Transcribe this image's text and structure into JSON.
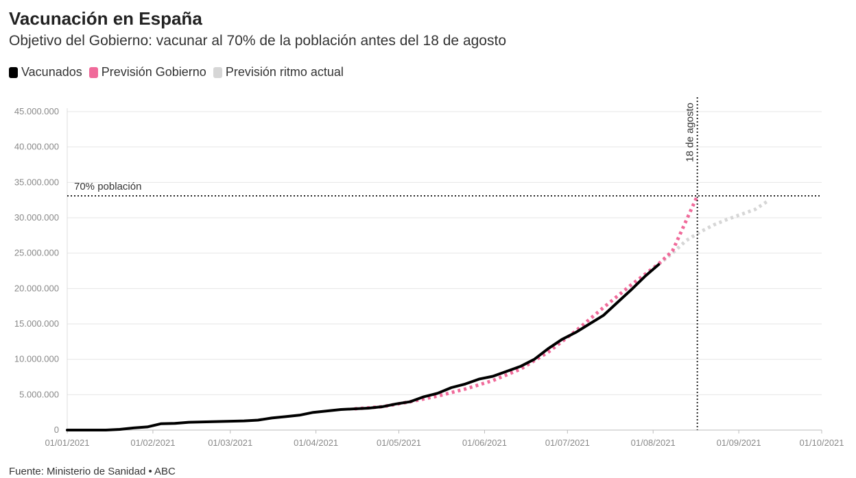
{
  "chart_data": {
    "type": "line",
    "title": "Vacunación en España",
    "subtitle": "Objetivo del Gobierno: vacunar al 70% de la población antes del 18 de agosto",
    "source": "Fuente: Ministerio de Sanidad • ABC",
    "xlabel": "",
    "ylabel": "",
    "x_range": [
      "01/01/2021",
      "01/10/2021"
    ],
    "ylim": [
      0,
      45000000
    ],
    "y_ticks": [
      0,
      5000000,
      10000000,
      15000000,
      20000000,
      25000000,
      30000000,
      35000000,
      40000000,
      45000000
    ],
    "y_tick_labels": [
      "0",
      "5.000.000",
      "10.000.000",
      "15.000.000",
      "20.000.000",
      "25.000.000",
      "30.000.000",
      "35.000.000",
      "40.000.000",
      "45.000.000"
    ],
    "x_tick_labels": [
      "01/01/2021",
      "01/02/2021",
      "01/03/2021",
      "01/04/2021",
      "01/05/2021",
      "01/06/2021",
      "01/07/2021",
      "01/08/2021",
      "01/09/2021",
      "01/10/2021"
    ],
    "legend": [
      {
        "label": "Vacunados",
        "color": "#000000"
      },
      {
        "label": "Previsión Gobierno",
        "color": "#f06a9a"
      },
      {
        "label": "Previsión ritmo actual",
        "color": "#d6d6d6"
      }
    ],
    "reference_lines": {
      "horizontal": {
        "value": 33100000,
        "label": "70% población"
      },
      "vertical": {
        "day": 229,
        "label": "18 de agosto"
      }
    },
    "series": [
      {
        "name": "Vacunados",
        "color": "#000000",
        "style": "solid",
        "points": [
          [
            1,
            0
          ],
          [
            10,
            0
          ],
          [
            15,
            0
          ],
          [
            20,
            100000
          ],
          [
            25,
            300000
          ],
          [
            30,
            450000
          ],
          [
            35,
            900000
          ],
          [
            40,
            950000
          ],
          [
            45,
            1100000
          ],
          [
            50,
            1150000
          ],
          [
            55,
            1200000
          ],
          [
            60,
            1250000
          ],
          [
            65,
            1300000
          ],
          [
            70,
            1400000
          ],
          [
            75,
            1700000
          ],
          [
            80,
            1900000
          ],
          [
            85,
            2100000
          ],
          [
            90,
            2500000
          ],
          [
            95,
            2700000
          ],
          [
            100,
            2900000
          ],
          [
            105,
            3000000
          ],
          [
            110,
            3100000
          ],
          [
            115,
            3300000
          ],
          [
            120,
            3700000
          ],
          [
            125,
            4000000
          ],
          [
            130,
            4700000
          ],
          [
            135,
            5200000
          ],
          [
            140,
            6000000
          ],
          [
            145,
            6500000
          ],
          [
            150,
            7200000
          ],
          [
            155,
            7600000
          ],
          [
            160,
            8300000
          ],
          [
            165,
            9000000
          ],
          [
            170,
            10000000
          ],
          [
            175,
            11500000
          ],
          [
            180,
            12800000
          ],
          [
            185,
            13800000
          ],
          [
            190,
            15000000
          ],
          [
            195,
            16200000
          ],
          [
            200,
            18000000
          ],
          [
            205,
            19800000
          ],
          [
            210,
            21700000
          ],
          [
            215,
            23400000
          ]
        ]
      },
      {
        "name": "Previsión Gobierno",
        "color": "#f06a9a",
        "style": "dotted",
        "points": [
          [
            105,
            3000000
          ],
          [
            115,
            3300000
          ],
          [
            125,
            4000000
          ],
          [
            135,
            4800000
          ],
          [
            145,
            5800000
          ],
          [
            155,
            7000000
          ],
          [
            165,
            8600000
          ],
          [
            175,
            11000000
          ],
          [
            185,
            14000000
          ],
          [
            195,
            17300000
          ],
          [
            205,
            20500000
          ],
          [
            215,
            23500000
          ],
          [
            220,
            25300000
          ],
          [
            229,
            33100000
          ]
        ]
      },
      {
        "name": "Previsión ritmo actual",
        "color": "#d6d6d6",
        "style": "dotted",
        "points": [
          [
            215,
            23400000
          ],
          [
            220,
            25000000
          ],
          [
            225,
            26800000
          ],
          [
            230,
            28000000
          ],
          [
            235,
            29000000
          ],
          [
            240,
            29800000
          ],
          [
            245,
            30500000
          ],
          [
            250,
            31200000
          ],
          [
            255,
            32500000
          ]
        ]
      }
    ]
  }
}
